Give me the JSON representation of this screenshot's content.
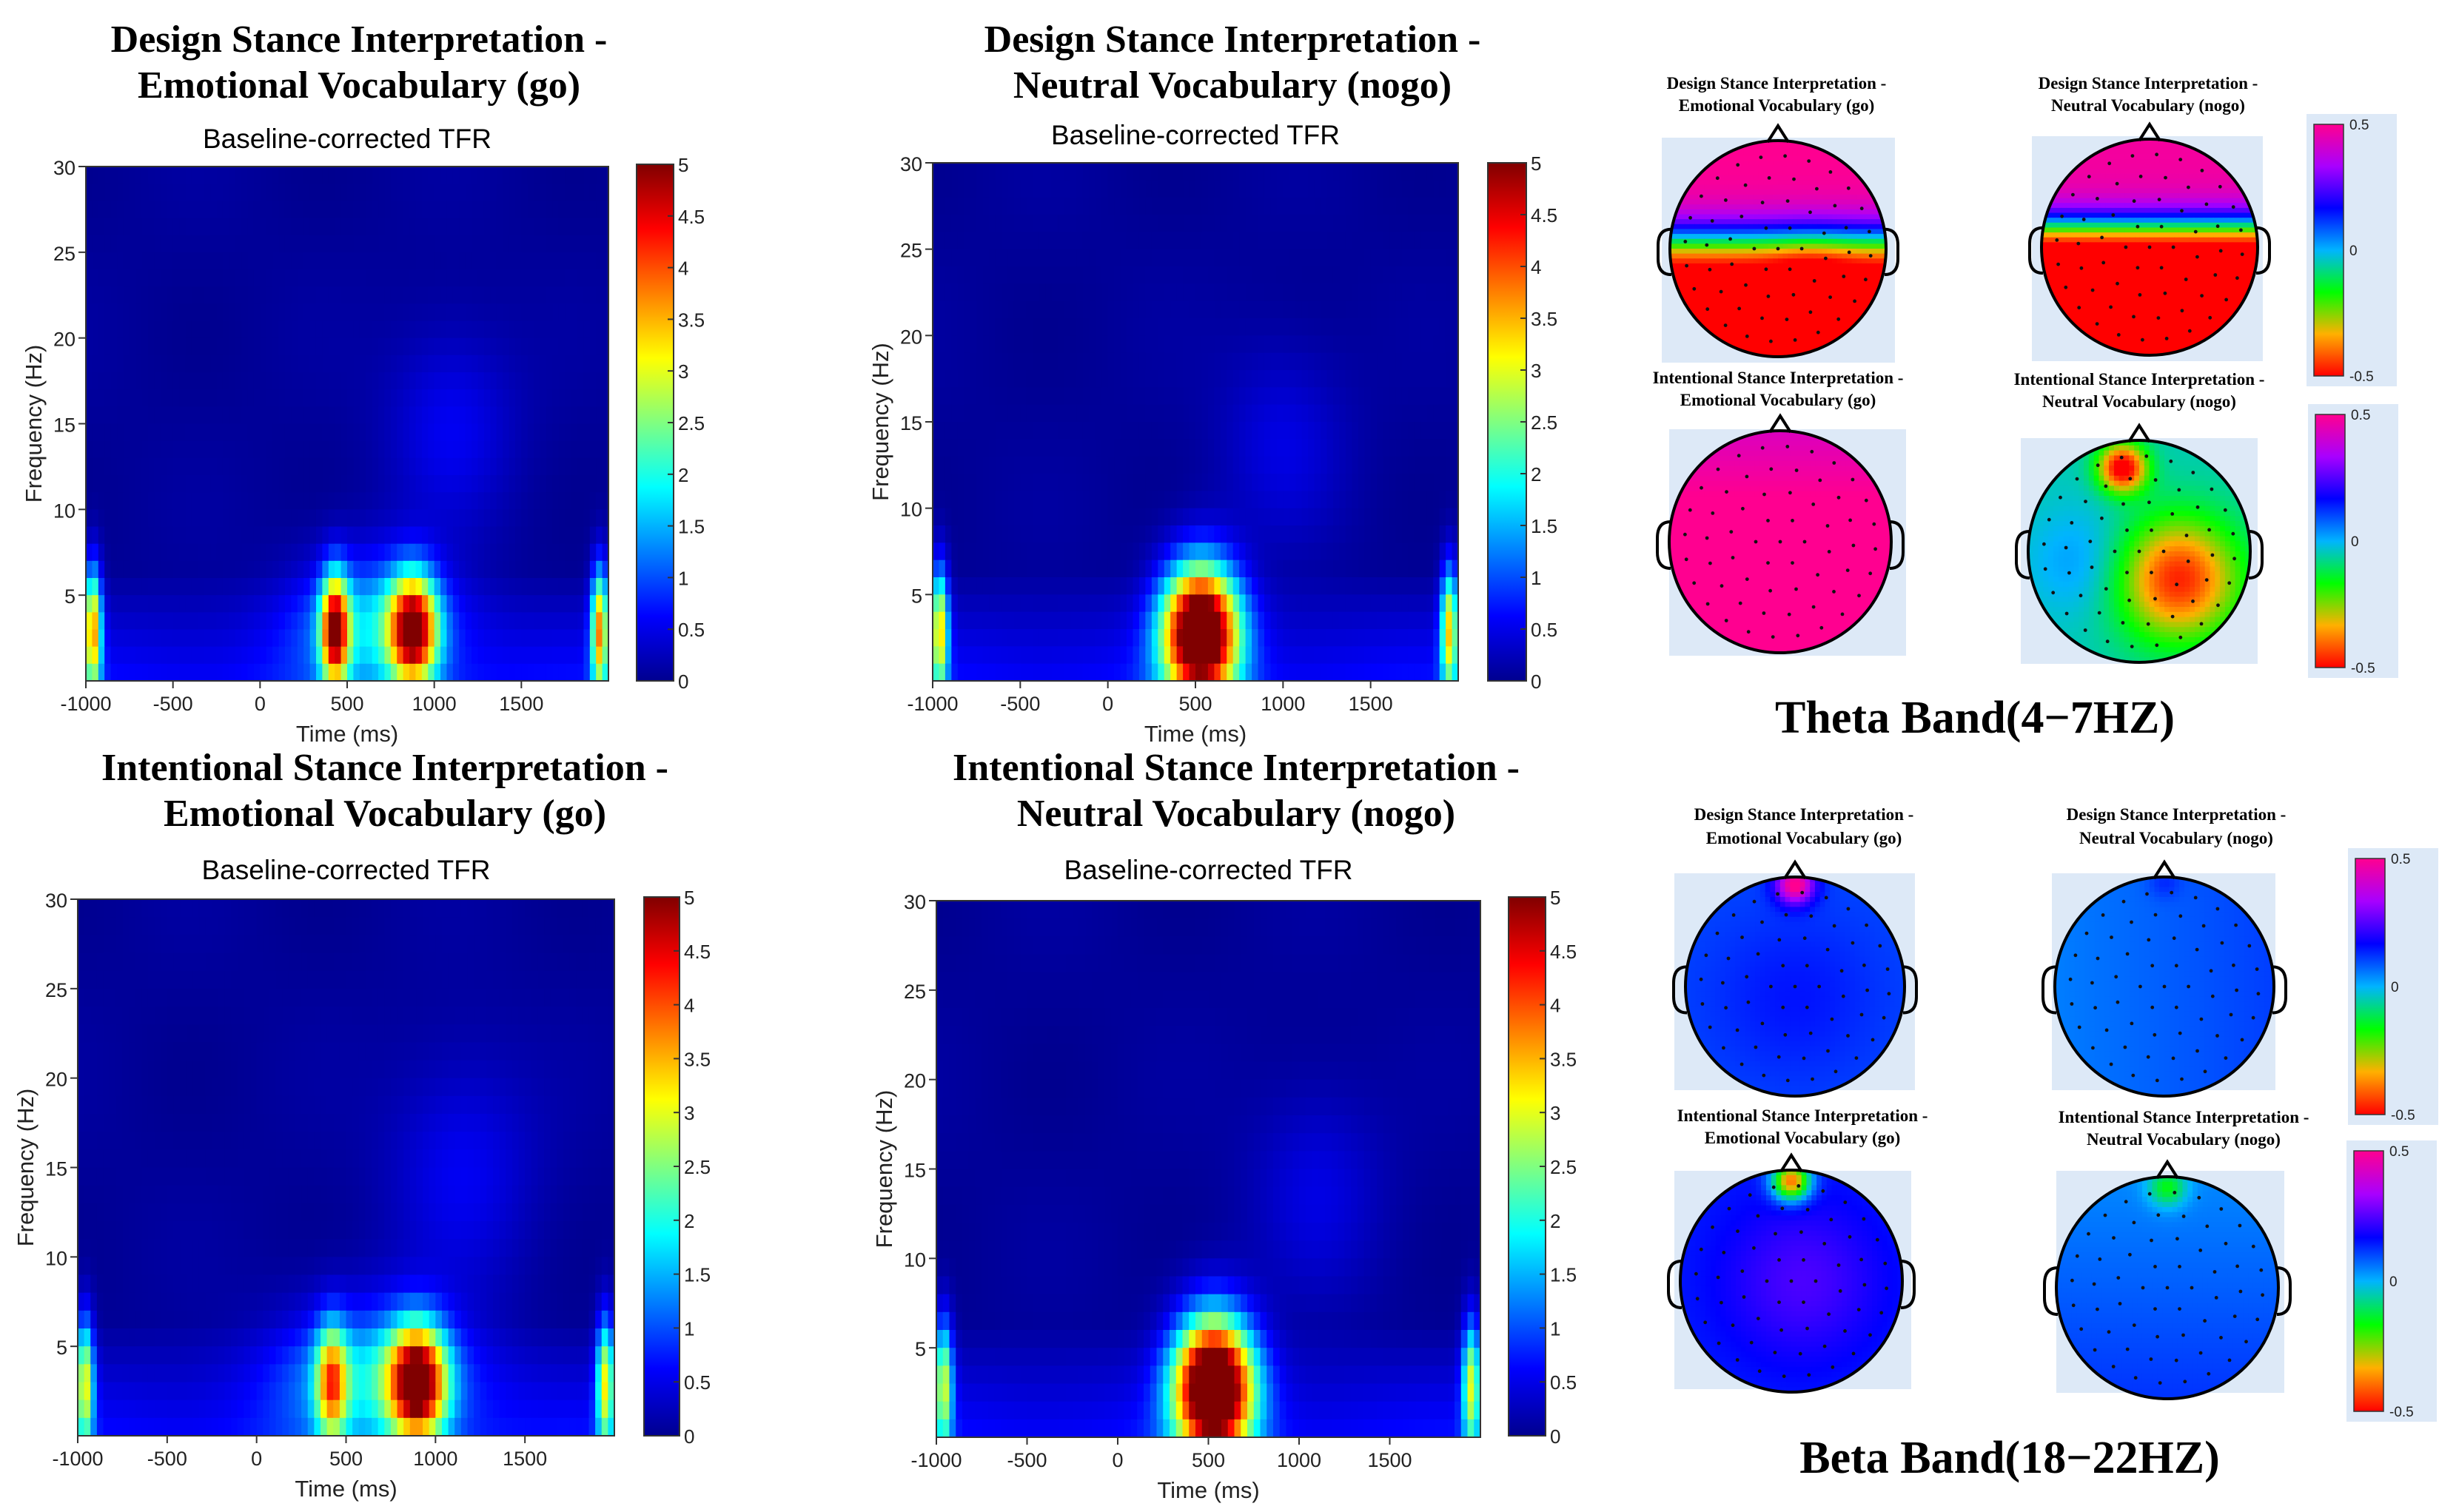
{
  "colors": {
    "axis": "#333333",
    "background": "#ffffff",
    "cap_bg": "#dde9f7"
  },
  "colormap": [
    "#00008f",
    "#0000ff",
    "#0080ff",
    "#00ffff",
    "#80ff80",
    "#ffff00",
    "#ff8000",
    "#ff0000",
    "#800000"
  ],
  "topo_colormap": [
    "#ff0000",
    "#ffb000",
    "#00ff00",
    "#00b4ff",
    "#0000ff",
    "#a800ff",
    "#ff0090"
  ],
  "chart_data": [
    {
      "type": "heatmap",
      "title": "Design Stance Interpretation - Emotional Vocabulary (go)",
      "title_lines": [
        "Design Stance Interpretation -",
        "Emotional Vocabulary (go)"
      ],
      "subtitle": "Baseline-corrected TFR",
      "xlabel": "Time (ms)",
      "ylabel": "Frequency (Hz)",
      "xlim": [
        -1000,
        2000
      ],
      "ylim": [
        0,
        30
      ],
      "xticks": [
        "-1000",
        "-500",
        "0",
        "500",
        "1000",
        "1500"
      ],
      "yticks": [
        "5",
        "10",
        "15",
        "20",
        "25",
        "30"
      ],
      "colorbar": {
        "range": [
          0,
          5
        ],
        "ticks": [
          "0",
          "0.5",
          "1",
          "1.5",
          "2",
          "2.5",
          "3",
          "3.5",
          "4",
          "4.5",
          "5"
        ]
      },
      "blobs": [
        {
          "t": 430,
          "f": 3,
          "sigma_t": 55,
          "sigma_f": 2.2,
          "power": 4.2
        },
        {
          "t": 880,
          "f": 3,
          "sigma_t": 95,
          "sigma_f": 2.2,
          "power": 4.4
        },
        {
          "t": 650,
          "f": 3.5,
          "sigma_t": 300,
          "sigma_f": 2.8,
          "power": 1.4
        },
        {
          "t": -960,
          "f": 3,
          "sigma_t": 35,
          "sigma_f": 2.5,
          "power": 3.4
        },
        {
          "t": 1950,
          "f": 3,
          "sigma_t": 35,
          "sigma_f": 2.5,
          "power": 3.4
        },
        {
          "t": 1100,
          "f": 15,
          "sigma_t": 250,
          "sigma_f": 4,
          "power": 0.5
        }
      ]
    },
    {
      "type": "heatmap",
      "title": "Design Stance Interpretation - Neutral Vocabulary (nogo)",
      "title_lines": [
        "Design Stance Interpretation -",
        "Neutral Vocabulary (nogo)"
      ],
      "subtitle": "Baseline-corrected TFR",
      "xlabel": "Time (ms)",
      "ylabel": "Frequency (Hz)",
      "xlim": [
        -1000,
        2000
      ],
      "ylim": [
        0,
        30
      ],
      "xticks": [
        "-1000",
        "-500",
        "0",
        "500",
        "1000",
        "1500"
      ],
      "yticks": [
        "5",
        "10",
        "15",
        "20",
        "25",
        "30"
      ],
      "colorbar": {
        "range": [
          0,
          5
        ],
        "ticks": [
          "0",
          "0.5",
          "1",
          "1.5",
          "2",
          "2.5",
          "3",
          "3.5",
          "4",
          "4.5",
          "5"
        ]
      },
      "blobs": [
        {
          "t": 530,
          "f": 2.8,
          "sigma_t": 150,
          "sigma_f": 2.7,
          "power": 6.2
        },
        {
          "t": -960,
          "f": 3,
          "sigma_t": 35,
          "sigma_f": 2.5,
          "power": 3.0
        },
        {
          "t": 1950,
          "f": 3,
          "sigma_t": 35,
          "sigma_f": 2.5,
          "power": 3.0
        },
        {
          "t": 1000,
          "f": 14,
          "sigma_t": 250,
          "sigma_f": 4,
          "power": 0.4
        }
      ]
    },
    {
      "type": "heatmap",
      "title": "Intentional Stance Interpretation - Emotional Vocabulary (go)",
      "title_lines": [
        "Intentional Stance Interpretation -",
        "Emotional Vocabulary (go)"
      ],
      "subtitle": "Baseline-corrected TFR",
      "xlabel": "Time (ms)",
      "ylabel": "Frequency (Hz)",
      "xlim": [
        -1000,
        2000
      ],
      "ylim": [
        0,
        30
      ],
      "xticks": [
        "-1000",
        "-500",
        "0",
        "500",
        "1000",
        "1500"
      ],
      "yticks": [
        "5",
        "10",
        "15",
        "20",
        "25",
        "30"
      ],
      "colorbar": {
        "range": [
          0,
          5
        ],
        "ticks": [
          "0",
          "0.5",
          "1",
          "1.5",
          "2",
          "2.5",
          "3",
          "3.5",
          "4",
          "4.5",
          "5"
        ]
      },
      "blobs": [
        {
          "t": 900,
          "f": 3,
          "sigma_t": 110,
          "sigma_f": 2.2,
          "power": 4.6
        },
        {
          "t": 420,
          "f": 3,
          "sigma_t": 60,
          "sigma_f": 2.2,
          "power": 2.8
        },
        {
          "t": 650,
          "f": 3.5,
          "sigma_t": 350,
          "sigma_f": 2.8,
          "power": 1.5
        },
        {
          "t": -960,
          "f": 3,
          "sigma_t": 35,
          "sigma_f": 2.5,
          "power": 2.8
        },
        {
          "t": 1950,
          "f": 3,
          "sigma_t": 35,
          "sigma_f": 2.5,
          "power": 2.8
        },
        {
          "t": 1150,
          "f": 15,
          "sigma_t": 280,
          "sigma_f": 4.5,
          "power": 0.5
        }
      ]
    },
    {
      "type": "heatmap",
      "title": "Intentional Stance Interpretation - Neutral Vocabulary (nogo)",
      "title_lines": [
        "Intentional Stance Interpretation -",
        "Neutral Vocabulary (nogo)"
      ],
      "subtitle": "Baseline-corrected TFR",
      "xlabel": "Time (ms)",
      "ylabel": "Frequency (Hz)",
      "xlim": [
        -1000,
        2000
      ],
      "ylim": [
        0,
        30
      ],
      "xticks": [
        "-1000",
        "-500",
        "0",
        "500",
        "1000",
        "1500"
      ],
      "yticks": [
        "5",
        "10",
        "15",
        "20",
        "25",
        "30"
      ],
      "colorbar": {
        "range": [
          0,
          5
        ],
        "ticks": [
          "0",
          "0.5",
          "1",
          "1.5",
          "2",
          "2.5",
          "3",
          "3.5",
          "4",
          "4.5",
          "5"
        ]
      },
      "blobs": [
        {
          "t": 530,
          "f": 2.8,
          "sigma_t": 150,
          "sigma_f": 2.7,
          "power": 6.5
        },
        {
          "t": -960,
          "f": 3,
          "sigma_t": 35,
          "sigma_f": 2.5,
          "power": 2.6
        },
        {
          "t": 1950,
          "f": 3,
          "sigma_t": 35,
          "sigma_f": 2.5,
          "power": 2.6
        },
        {
          "t": 1100,
          "f": 14,
          "sigma_t": 250,
          "sigma_f": 4,
          "power": 0.4
        }
      ]
    }
  ],
  "topo_bands": [
    {
      "label": "Theta Band(4−7HZ)",
      "colorbar": {
        "range": [
          -0.5,
          0.5
        ],
        "ticks": [
          "0.5",
          "0",
          "-0.5"
        ]
      },
      "maps": [
        {
          "label_lines": [
            "Design Stance Interpretation -",
            "Emotional Vocabulary (go)"
          ],
          "pattern": "theta_design_go"
        },
        {
          "label_lines": [
            "Design Stance Interpretation -",
            "Neutral Vocabulary (nogo)"
          ],
          "pattern": "theta_design_nogo"
        },
        {
          "label_lines": [
            "Intentional  Stance Interpretation -",
            "Emotional Vocabulary (go)"
          ],
          "pattern": "theta_intent_go"
        },
        {
          "label_lines": [
            "Intentional  Stance Interpretation -",
            "Neutral Vocabulary (nogo)"
          ],
          "pattern": "theta_intent_nogo"
        }
      ]
    },
    {
      "label": "Beta Band(18−22HZ)",
      "colorbar": {
        "range": [
          -0.5,
          0.5
        ],
        "ticks": [
          "0.5",
          "0",
          "-0.5"
        ]
      },
      "maps": [
        {
          "label_lines": [
            "Design Stance Interpretation -",
            "Emotional Vocabulary (go)"
          ],
          "pattern": "beta_design_go"
        },
        {
          "label_lines": [
            "Design Stance Interpretation -",
            "Neutral Vocabulary (nogo)"
          ],
          "pattern": "beta_design_nogo"
        },
        {
          "label_lines": [
            "Intentional  Stance Interpretation -",
            "Emotional Vocabulary (go)"
          ],
          "pattern": "beta_intent_go"
        },
        {
          "label_lines": [
            "Intentional  Stance Interpretation -",
            "Neutral Vocabulary (nogo)"
          ],
          "pattern": "beta_intent_nogo"
        }
      ]
    }
  ]
}
